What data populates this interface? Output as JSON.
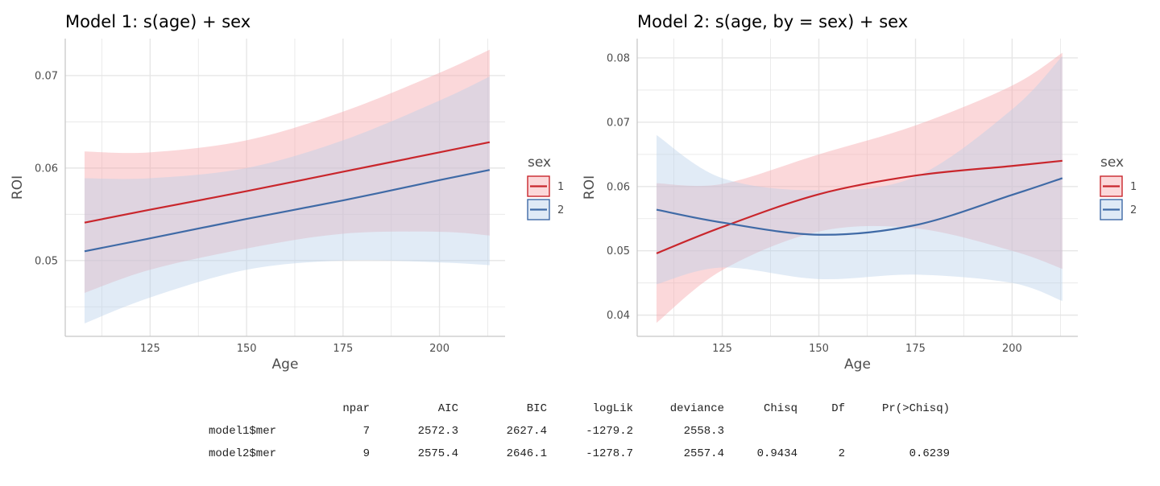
{
  "colors": {
    "sex1_line": "#c9262c",
    "sex2_line": "#3f6aa6",
    "sex1_band": "#f7a9ad",
    "sex2_band": "#b8d0ea",
    "grid": "#e6e6e6",
    "axis": "#c8c8c8"
  },
  "chart_data": [
    {
      "type": "line",
      "title": "Model 1: s(age) + sex",
      "xlabel": "Age",
      "ylabel": "ROI",
      "xlim": [
        103,
        217
      ],
      "ylim": [
        0.0418,
        0.074
      ],
      "xticks": [
        125,
        150,
        175,
        200
      ],
      "yticks": [
        0.05,
        0.06,
        0.07
      ],
      "ytick_labels": [
        "0.05",
        "0.06",
        "0.07"
      ],
      "grid": true,
      "legend": {
        "title": "sex",
        "entries": [
          "1",
          "2"
        ],
        "placement": "right"
      },
      "x": [
        108,
        125,
        150,
        175,
        200,
        213
      ],
      "series": [
        {
          "name": "1",
          "values": [
            0.0541,
            0.0555,
            0.0575,
            0.0596,
            0.0617,
            0.0628
          ],
          "lower": [
            0.0465,
            0.049,
            0.0513,
            0.0529,
            0.0531,
            0.0527
          ],
          "upper": [
            0.0618,
            0.0617,
            0.063,
            0.0661,
            0.0703,
            0.0728
          ]
        },
        {
          "name": "2",
          "values": [
            0.051,
            0.0524,
            0.0545,
            0.0565,
            0.0587,
            0.0598
          ],
          "lower": [
            0.0432,
            0.046,
            0.049,
            0.05,
            0.0498,
            0.0495
          ],
          "upper": [
            0.0589,
            0.0589,
            0.06,
            0.063,
            0.0673,
            0.0699
          ]
        }
      ]
    },
    {
      "type": "line",
      "title": "Model 2: s(age, by = sex) + sex",
      "xlabel": "Age",
      "ylabel": "ROI",
      "xlim": [
        103,
        217
      ],
      "ylim": [
        0.0367,
        0.083
      ],
      "xticks": [
        125,
        150,
        175,
        200
      ],
      "yticks": [
        0.04,
        0.05,
        0.06,
        0.07,
        0.08
      ],
      "ytick_labels": [
        "0.04",
        "0.05",
        "0.06",
        "0.07",
        "0.08"
      ],
      "grid": true,
      "legend": {
        "title": "sex",
        "entries": [
          "1",
          "2"
        ],
        "placement": "right"
      },
      "x": [
        108,
        125,
        150,
        175,
        200,
        213
      ],
      "series": [
        {
          "name": "1",
          "values": [
            0.0496,
            0.0537,
            0.0588,
            0.0617,
            0.0632,
            0.064
          ],
          "lower": [
            0.0388,
            0.047,
            0.053,
            0.0535,
            0.05,
            0.0472
          ],
          "upper": [
            0.0605,
            0.0604,
            0.065,
            0.0695,
            0.0757,
            0.0808
          ]
        },
        {
          "name": "2",
          "values": [
            0.0564,
            0.0544,
            0.0525,
            0.054,
            0.0587,
            0.0613
          ],
          "lower": [
            0.0448,
            0.0474,
            0.0456,
            0.0463,
            0.045,
            0.0422
          ],
          "upper": [
            0.068,
            0.0613,
            0.0594,
            0.0615,
            0.072,
            0.0803
          ]
        }
      ]
    }
  ],
  "anova_table": {
    "headers": [
      "npar",
      "AIC",
      "BIC",
      "logLik",
      "deviance",
      "Chisq",
      "Df",
      "Pr(>Chisq)"
    ],
    "rows": [
      {
        "name": "model1$mer",
        "cells": [
          "7",
          "2572.3",
          "2627.4",
          "-1279.2",
          "2558.3",
          "",
          "",
          ""
        ]
      },
      {
        "name": "model2$mer",
        "cells": [
          "9",
          "2575.4",
          "2646.1",
          "-1278.7",
          "2557.4",
          "0.9434",
          "2",
          "0.6239"
        ]
      }
    ]
  }
}
